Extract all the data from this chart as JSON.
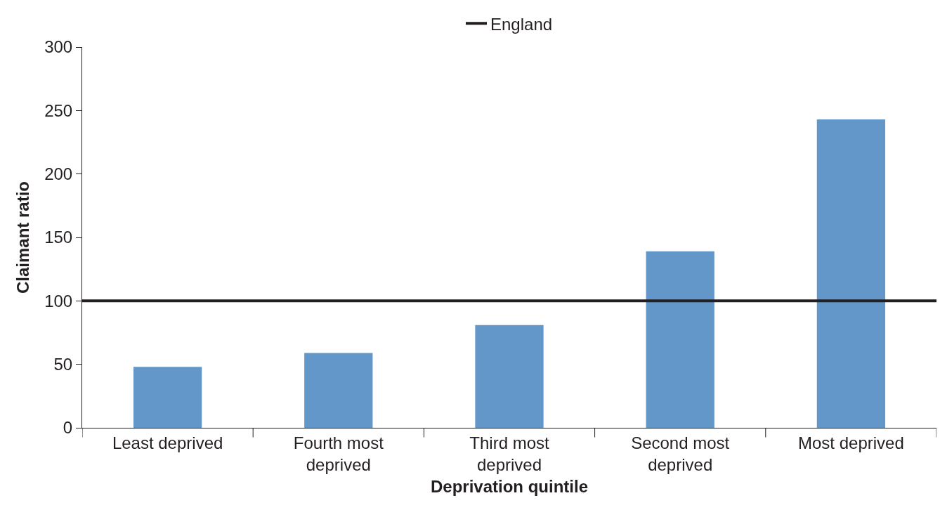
{
  "chart_data": {
    "type": "bar",
    "xlabel": "Deprivation quintile",
    "ylabel": "Claimant ratio",
    "categories": [
      "Least deprived",
      "Fourth most deprived",
      "Third most deprived",
      "Second most deprived",
      "Most deprived"
    ],
    "values": [
      48,
      59,
      81,
      139,
      243
    ],
    "color": "#6497c9",
    "ylim": [
      0,
      300
    ],
    "yticks": [
      0,
      50,
      100,
      150,
      200,
      250,
      300
    ],
    "grid": false,
    "legend": "top",
    "ref_lines": [
      {
        "axis": "y",
        "value": 100,
        "label": "England",
        "color": "#231f20"
      }
    ]
  }
}
